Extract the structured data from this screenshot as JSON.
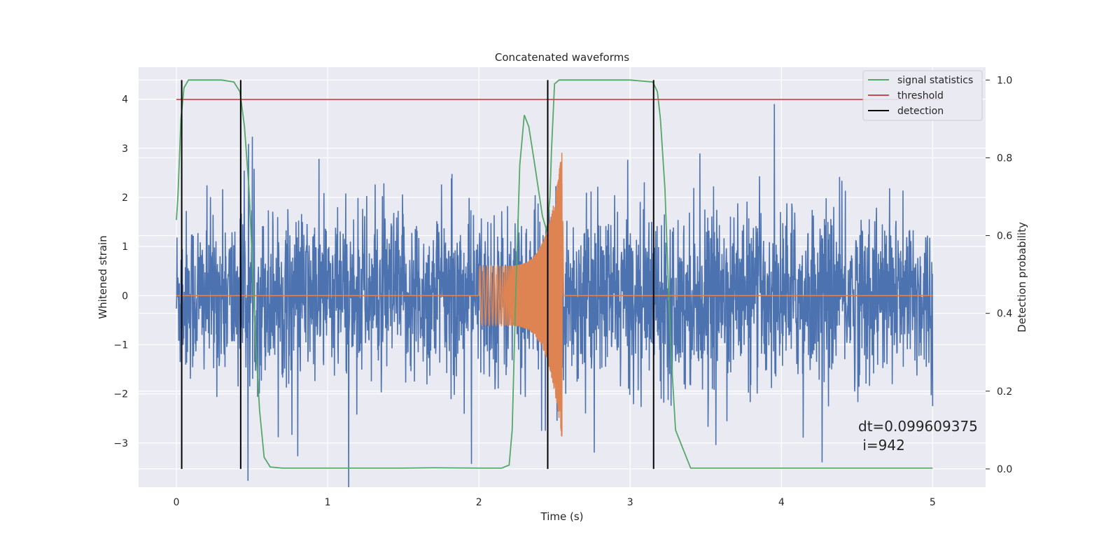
{
  "chart_data": {
    "type": "line",
    "title": "Concatenated waveforms",
    "xlabel": "Time (s)",
    "ylabel": "Whitened strain",
    "y2label": "Detection probability",
    "xlim": [
      -0.25,
      5.35
    ],
    "ylim": [
      -3.9,
      4.65
    ],
    "y2lim": [
      -0.047,
      1.033
    ],
    "xticks": [
      0,
      1,
      2,
      3,
      4,
      5
    ],
    "yticks": [
      -3,
      -2,
      -1,
      0,
      1,
      2,
      3,
      4
    ],
    "yticklabels": [
      "−3",
      "−2",
      "−1",
      "0",
      "1",
      "2",
      "3",
      "4"
    ],
    "y2ticks": [
      0.0,
      0.2,
      0.4,
      0.6,
      0.8,
      1.0
    ],
    "y2ticklabels": [
      "0.0",
      "0.2",
      "0.4",
      "0.6",
      "0.8",
      "1.0"
    ],
    "grid": true,
    "background": "#eaeaf2",
    "legend": {
      "placement": "top-right",
      "entries": [
        {
          "label": "signal statistics",
          "color": "#55a868"
        },
        {
          "label": "threshold",
          "color": "#c44e52"
        },
        {
          "label": "detection",
          "color": "#000000"
        }
      ]
    },
    "series": [
      {
        "kind": "noise",
        "axis": "left",
        "color": "#4c72b0",
        "x_range": [
          0,
          5
        ],
        "std": 1.0,
        "max_abs": 3.9
      },
      {
        "kind": "chirp",
        "axis": "left",
        "color": "#dd8452",
        "x_range": [
          2.0,
          2.56
        ],
        "amp_start": 0.6,
        "amp_peak": 3.0,
        "peak_t": 2.55
      },
      {
        "name": "signal statistics",
        "axis": "right",
        "color": "#55a868",
        "x": [
          0.0,
          0.01,
          0.03,
          0.05,
          0.08,
          0.12,
          0.2,
          0.3,
          0.38,
          0.42,
          0.45,
          0.48,
          0.5,
          0.52,
          0.55,
          0.58,
          0.62,
          0.7,
          1.0,
          1.5,
          1.7,
          2.0,
          2.15,
          2.2,
          2.22,
          2.24,
          2.27,
          2.3,
          2.33,
          2.37,
          2.42,
          2.45,
          2.47,
          2.48,
          2.5,
          2.53,
          2.6,
          2.8,
          3.0,
          3.15,
          3.18,
          3.2,
          3.23,
          3.25,
          3.27,
          3.3,
          3.4,
          4.0,
          5.0
        ],
        "y": [
          0.64,
          0.7,
          0.9,
          0.98,
          1.0,
          1.0,
          1.0,
          1.0,
          0.995,
          0.97,
          0.88,
          0.72,
          0.55,
          0.35,
          0.15,
          0.03,
          0.005,
          0.002,
          0.002,
          0.002,
          0.003,
          0.002,
          0.002,
          0.01,
          0.1,
          0.4,
          0.78,
          0.91,
          0.88,
          0.78,
          0.65,
          0.61,
          0.7,
          0.82,
          0.99,
          1.0,
          1.0,
          1.0,
          1.0,
          0.995,
          0.97,
          0.9,
          0.72,
          0.5,
          0.3,
          0.1,
          0.002,
          0.002,
          0.002
        ]
      },
      {
        "name": "threshold",
        "axis": "right",
        "color": "#c44e52",
        "x": [
          0,
          5.05
        ],
        "y": [
          0.95,
          0.95
        ]
      }
    ],
    "detections": [
      0.035,
      0.425,
      2.455,
      3.155
    ],
    "annotation": [
      "dt=0.099609375",
      " i=942"
    ]
  }
}
